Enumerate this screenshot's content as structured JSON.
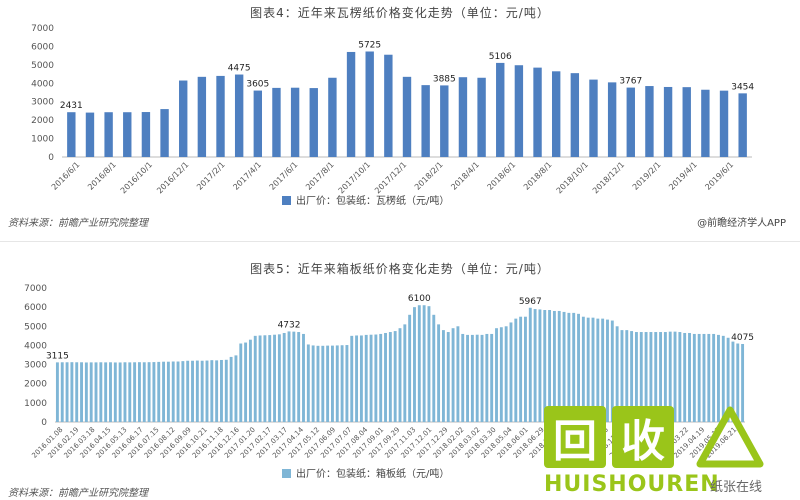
{
  "chart_data": [
    {
      "type": "bar",
      "title": "图表4：近年来瓦楞纸价格变化走势（单位：元/吨）",
      "ylim": [
        0,
        7000
      ],
      "yticks": [
        0,
        1000,
        2000,
        3000,
        4000,
        5000,
        6000,
        7000
      ],
      "grid": false,
      "legend_position": "bottom",
      "bar_color": "#4e7fc0",
      "x_tick_labels": [
        "2016/6/1",
        "2016/8/1",
        "2016/10/1",
        "2016/12/1",
        "2017/2/1",
        "2017/4/1",
        "2017/6/1",
        "2017/8/1",
        "2017/10/1",
        "2017/12/1",
        "2018/2/1",
        "2018/4/1",
        "2018/6/1",
        "2018/8/1",
        "2018/10/1",
        "2018/12/1",
        "2019/2/1",
        "2019/4/1",
        "2019/6/1"
      ],
      "series": [
        {
          "name": "出厂价：包装纸：瓦楞纸（元/吨）",
          "values": [
            2431,
            2410,
            2430,
            2430,
            2440,
            2600,
            4150,
            4350,
            4400,
            4475,
            3605,
            3750,
            3760,
            3740,
            4300,
            5700,
            5725,
            5550,
            4350,
            3900,
            3885,
            4330,
            4300,
            5106,
            4980,
            4850,
            4650,
            4550,
            4200,
            4050,
            3767,
            3850,
            3800,
            3790,
            3650,
            3600,
            3454
          ],
          "data_labels": {
            "0": "2431",
            "9": "4475",
            "10": "3605",
            "16": "5725",
            "20": "3885",
            "23": "5106",
            "30": "3767",
            "36": "3454"
          }
        }
      ],
      "source": "资料来源：前瞻产业研究院整理",
      "brand": "@前瞻经济学人APP"
    },
    {
      "type": "bar",
      "title": "图表5：近年来箱板纸价格变化走势（单位：元/吨）",
      "ylim": [
        0,
        7000
      ],
      "yticks": [
        0,
        1000,
        2000,
        3000,
        4000,
        5000,
        6000,
        7000
      ],
      "grid": false,
      "legend_position": "bottom",
      "bar_color": "#7fb6d6",
      "x_tick_labels": [
        "2016.01.08",
        "2016.02.19",
        "2016.03.18",
        "2016.04.15",
        "2016.05.13",
        "2016.06.17",
        "2016.07.15",
        "2016.08.12",
        "2016.09.09",
        "2016.10.21",
        "2016.11.18",
        "2016.12.16",
        "2017.01.20",
        "2017.02.17",
        "2017.03.17",
        "2017.04.14",
        "2017.05.12",
        "2017.06.09",
        "2017.07.07",
        "2017.08.04",
        "2017.09.01",
        "2017.09.29",
        "2017.11.03",
        "2017.12.01",
        "2017.12.29",
        "2018.02.02",
        "2018.03.02",
        "2018.03.30",
        "2018.05.04",
        "2018.06.01",
        "2018.06.29",
        "2018.07.27",
        "2018.08.24",
        "2018.09.21",
        "2018.10.26",
        "2018.11.23",
        "2018.12.21",
        "2019.01.18",
        "2019.02.22",
        "2019.03.22",
        "2019.04.19",
        "2019.05.17",
        "2019.06.21"
      ],
      "series": [
        {
          "name": "出厂价：包装纸：箱板纸（元/吨）",
          "values": [
            3115,
            3120,
            3120,
            3125,
            3120,
            3120,
            3110,
            3115,
            3115,
            3120,
            3115,
            3120,
            3110,
            3110,
            3120,
            3115,
            3120,
            3125,
            3120,
            3125,
            3130,
            3140,
            3150,
            3150,
            3160,
            3160,
            3180,
            3200,
            3200,
            3210,
            3200,
            3210,
            3230,
            3220,
            3240,
            3250,
            3400,
            3480,
            4100,
            4150,
            4300,
            4500,
            4520,
            4530,
            4540,
            4560,
            4580,
            4650,
            4732,
            4720,
            4700,
            4600,
            4050,
            4000,
            3980,
            3980,
            3990,
            3990,
            4000,
            4010,
            4020,
            4500,
            4520,
            4520,
            4550,
            4560,
            4570,
            4600,
            4650,
            4700,
            4750,
            4900,
            5100,
            5600,
            6000,
            6100,
            6100,
            6050,
            5600,
            5100,
            4800,
            4700,
            4900,
            5000,
            4600,
            4550,
            4550,
            4560,
            4550,
            4600,
            4600,
            4900,
            4950,
            5000,
            5200,
            5400,
            5500,
            5500,
            5967,
            5900,
            5880,
            5850,
            5850,
            5800,
            5800,
            5750,
            5700,
            5700,
            5650,
            5500,
            5450,
            5450,
            5400,
            5400,
            5350,
            5300,
            5000,
            4800,
            4800,
            4750,
            4700,
            4700,
            4700,
            4700,
            4700,
            4700,
            4700,
            4720,
            4720,
            4700,
            4650,
            4650,
            4600,
            4600,
            4600,
            4600,
            4600,
            4550,
            4500,
            4400,
            4200,
            4100,
            4075
          ],
          "data_labels": {
            "0": "3115",
            "48": "4732",
            "75": "6100",
            "98": "5967",
            "142": "4075"
          }
        }
      ],
      "source": "资料来源：前瞻产业研究院整理"
    }
  ],
  "watermark": {
    "logo_glyphs": "回收",
    "logo_text": "HUISHOUREN",
    "suffix": "纸张在线"
  }
}
